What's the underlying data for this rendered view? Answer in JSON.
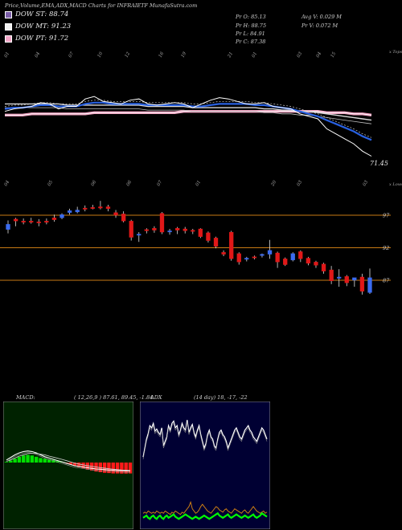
{
  "header": {
    "title": "Price,Volume,EMA,ADX,MACD Charts for INFRAIETF MunafaSutra.com",
    "dow_st": "DOW ST: 88.74",
    "dow_mt": "DOW MT: 91.23",
    "dow_pt": "DOW PT: 91.72",
    "pr_o": "Pr   O: 85.13",
    "pr_h": "Pr   H: 88.75",
    "pr_l": "Pr   L: 84.91",
    "pr_c": "Pr   C: 87.38",
    "avg_v": "Avg V: 0.029 M",
    "pr_v": "Pr   V: 0.072  M"
  },
  "colors": {
    "dow_st_swatch": "#7b5ea7",
    "dow_mt_swatch": "#f0f0f0",
    "dow_pt_swatch": "#f4a7c8",
    "up_candle": "#3b6bf0",
    "down_candle": "#e01818",
    "ema_short": "#2860e0",
    "ema_long": "#f0a0c0",
    "level_line": "#c87a14",
    "macd_bg": "#002200",
    "adx_bg": "#000033"
  },
  "chart_data": [
    {
      "type": "line",
      "name": "price-ema-overlay",
      "labels": {
        "top": "x Tops",
        "bottom": "x Lows",
        "last_value": "71.45"
      },
      "top_tick_labels": [
        "01",
        "04",
        "07",
        "10",
        "12",
        "16",
        "19",
        "21",
        "01",
        "03",
        "04",
        "15"
      ],
      "bottom_tick_labels": [
        "04",
        "05",
        "06",
        "06",
        "07",
        "01",
        "20",
        "03"
      ],
      "series": [
        {
          "name": "",
          "values": [
            66,
            68,
            69,
            70,
            73,
            72,
            68,
            70,
            70,
            76,
            78,
            74,
            73,
            72,
            75,
            76,
            72,
            71,
            72,
            73,
            72,
            69,
            72,
            75,
            77,
            76,
            74,
            72,
            72,
            73,
            70,
            69,
            68,
            64,
            62,
            60,
            52,
            48,
            44,
            40,
            34,
            30
          ]
        },
        {
          "name": "",
          "values": [
            68,
            69,
            69,
            70,
            71,
            71,
            70,
            70,
            70,
            72,
            73,
            73,
            72,
            72,
            72,
            72,
            71,
            71,
            71,
            71,
            71,
            70,
            70,
            71,
            72,
            72,
            72,
            72,
            71,
            71,
            70,
            69,
            68,
            66,
            64,
            62,
            59,
            56,
            53,
            50,
            46,
            43
          ]
        },
        {
          "name": "",
          "values": [
            72,
            72,
            72,
            72,
            72,
            72,
            72,
            71,
            71,
            71,
            71,
            71,
            71,
            71,
            71,
            71,
            70,
            70,
            70,
            70,
            70,
            69,
            69,
            69,
            69,
            69,
            69,
            69,
            69,
            68,
            68,
            67,
            67,
            66,
            66,
            65,
            64,
            63,
            62,
            61,
            60,
            59
          ]
        },
        {
          "name": "",
          "values": [
            63,
            63,
            63,
            64,
            64,
            64,
            64,
            64,
            64,
            64,
            65,
            65,
            65,
            65,
            65,
            65,
            65,
            65,
            65,
            65,
            66,
            66,
            66,
            66,
            66,
            66,
            66,
            66,
            66,
            66,
            66,
            66,
            66,
            66,
            66,
            66,
            65,
            65,
            65,
            64,
            64,
            63
          ]
        }
      ]
    },
    {
      "type": "candlestick",
      "name": "price-candles",
      "level_labels": [
        "97",
        "92",
        "87"
      ],
      "level_values": [
        97,
        92,
        87
      ],
      "candles": [
        {
          "o": 94.8,
          "h": 96.2,
          "l": 94.2,
          "c": 95.6
        },
        {
          "o": 96.4,
          "h": 96.6,
          "l": 95.3,
          "c": 96.1
        },
        {
          "o": 96.1,
          "h": 96.5,
          "l": 95.6,
          "c": 96.0
        },
        {
          "o": 96.1,
          "h": 96.6,
          "l": 95.7,
          "c": 95.9
        },
        {
          "o": 96.0,
          "h": 96.4,
          "l": 95.3,
          "c": 95.9
        },
        {
          "o": 96.1,
          "h": 96.5,
          "l": 95.6,
          "c": 95.9
        },
        {
          "o": 96.6,
          "h": 97.1,
          "l": 96.0,
          "c": 96.3
        },
        {
          "o": 96.6,
          "h": 97.3,
          "l": 96.4,
          "c": 97.1
        },
        {
          "o": 97.4,
          "h": 98.0,
          "l": 97.1,
          "c": 97.7
        },
        {
          "o": 97.5,
          "h": 98.3,
          "l": 97.3,
          "c": 97.8
        },
        {
          "o": 98.1,
          "h": 98.5,
          "l": 97.6,
          "c": 98.0
        },
        {
          "o": 98.2,
          "h": 98.6,
          "l": 97.9,
          "c": 98.1
        },
        {
          "o": 98.3,
          "h": 99.2,
          "l": 97.9,
          "c": 98.1
        },
        {
          "o": 98.3,
          "h": 98.6,
          "l": 97.6,
          "c": 98.0
        },
        {
          "o": 97.4,
          "h": 97.8,
          "l": 96.6,
          "c": 97.0
        },
        {
          "o": 97.2,
          "h": 97.6,
          "l": 95.9,
          "c": 96.1
        },
        {
          "o": 96.1,
          "h": 96.3,
          "l": 93.1,
          "c": 93.6
        },
        {
          "o": 94.0,
          "h": 94.4,
          "l": 92.9,
          "c": 94.1
        },
        {
          "o": 94.8,
          "h": 95.0,
          "l": 94.2,
          "c": 94.6
        },
        {
          "o": 95.0,
          "h": 95.3,
          "l": 94.3,
          "c": 94.7
        },
        {
          "o": 97.3,
          "h": 97.5,
          "l": 94.1,
          "c": 94.4
        },
        {
          "o": 94.6,
          "h": 94.9,
          "l": 94.0,
          "c": 94.6
        },
        {
          "o": 95.0,
          "h": 95.2,
          "l": 94.1,
          "c": 94.7
        },
        {
          "o": 94.9,
          "h": 95.2,
          "l": 94.2,
          "c": 94.6
        },
        {
          "o": 94.7,
          "h": 94.9,
          "l": 94.1,
          "c": 94.5
        },
        {
          "o": 94.9,
          "h": 95.0,
          "l": 93.5,
          "c": 93.7
        },
        {
          "o": 94.3,
          "h": 94.5,
          "l": 92.8,
          "c": 93.1
        },
        {
          "o": 93.5,
          "h": 93.7,
          "l": 91.9,
          "c": 92.2
        },
        {
          "o": 91.3,
          "h": 91.6,
          "l": 90.7,
          "c": 91.0
        },
        {
          "o": 94.4,
          "h": 94.6,
          "l": 90.0,
          "c": 90.3
        },
        {
          "o": 91.1,
          "h": 91.3,
          "l": 89.4,
          "c": 89.8
        },
        {
          "o": 90.3,
          "h": 90.6,
          "l": 89.9,
          "c": 90.4
        },
        {
          "o": 90.6,
          "h": 90.8,
          "l": 90.2,
          "c": 90.5
        },
        {
          "o": 90.8,
          "h": 91.1,
          "l": 90.5,
          "c": 91.0
        },
        {
          "o": 91.0,
          "h": 93.2,
          "l": 90.3,
          "c": 91.6
        },
        {
          "o": 91.2,
          "h": 91.4,
          "l": 88.9,
          "c": 89.8
        },
        {
          "o": 90.3,
          "h": 90.5,
          "l": 89.2,
          "c": 89.4
        },
        {
          "o": 90.1,
          "h": 91.3,
          "l": 89.9,
          "c": 91.1
        },
        {
          "o": 91.4,
          "h": 91.6,
          "l": 89.8,
          "c": 90.3
        },
        {
          "o": 90.4,
          "h": 90.6,
          "l": 89.3,
          "c": 89.6
        },
        {
          "o": 89.8,
          "h": 90.0,
          "l": 88.9,
          "c": 89.3
        },
        {
          "o": 89.5,
          "h": 89.7,
          "l": 88.0,
          "c": 88.4
        },
        {
          "o": 88.6,
          "h": 89.2,
          "l": 86.4,
          "c": 86.9
        },
        {
          "o": 87.3,
          "h": 88.7,
          "l": 86.0,
          "c": 87.5
        },
        {
          "o": 87.6,
          "h": 87.8,
          "l": 86.1,
          "c": 86.6
        },
        {
          "o": 87.0,
          "h": 87.3,
          "l": 86.0,
          "c": 87.4
        },
        {
          "o": 87.5,
          "h": 88.0,
          "l": 84.8,
          "c": 85.3
        },
        {
          "o": 85.1,
          "h": 88.8,
          "l": 84.9,
          "c": 87.4
        }
      ]
    },
    {
      "type": "bar",
      "name": "macd",
      "label": "MACD:",
      "params": "( 12,26,9 ) 87.61, 89.45, -1.84",
      "histogram": [
        0.05,
        0.15,
        0.3,
        0.45,
        0.55,
        0.6,
        0.55,
        0.45,
        0.35,
        0.3,
        0.25,
        0.2,
        0.12,
        0.05,
        -0.05,
        -0.15,
        -0.25,
        -0.35,
        -0.45,
        -0.55,
        -0.62,
        -0.7,
        -0.75,
        -0.8,
        -0.82,
        -0.85,
        -0.85,
        -0.86,
        -0.86,
        -0.85
      ],
      "macd_line": [
        0.2,
        0.4,
        0.6,
        0.75,
        0.85,
        0.9,
        0.85,
        0.75,
        0.6,
        0.45,
        0.35,
        0.25,
        0.15,
        0.05,
        -0.05,
        -0.15,
        -0.25,
        -0.3,
        -0.35,
        -0.4,
        -0.45,
        -0.5,
        -0.52,
        -0.55,
        -0.58,
        -0.6,
        -0.62,
        -0.63,
        -0.65,
        -0.66
      ],
      "signal_line": [
        0.1,
        0.2,
        0.35,
        0.5,
        0.6,
        0.7,
        0.72,
        0.7,
        0.65,
        0.6,
        0.5,
        0.42,
        0.33,
        0.25,
        0.15,
        0.05,
        -0.05,
        -0.12,
        -0.18,
        -0.25,
        -0.3,
        -0.35,
        -0.4,
        -0.44,
        -0.48,
        -0.52,
        -0.55,
        -0.58,
        -0.6,
        -0.62
      ]
    },
    {
      "type": "line",
      "name": "adx",
      "label": "ADX",
      "params": "(14 day) 18, -17, -22",
      "series": [
        {
          "name": "",
          "values": [
            62,
            70,
            78,
            83,
            90,
            88,
            92,
            85,
            87,
            84,
            82,
            88,
            72,
            76,
            80,
            90,
            86,
            92,
            94,
            88,
            90,
            82,
            86,
            92,
            88,
            86,
            95,
            84,
            88,
            91,
            84,
            80,
            86,
            90,
            82,
            76,
            70,
            74,
            82,
            86,
            80,
            78,
            72,
            70,
            78,
            84,
            86,
            82,
            80,
            76,
            70,
            74,
            78,
            82,
            86,
            88,
            84,
            80,
            78,
            82,
            86,
            88,
            90,
            86,
            84,
            80,
            78,
            76,
            80,
            84,
            88,
            86,
            82,
            78
          ]
        },
        {
          "name": "",
          "values": [
            12,
            13,
            12,
            14,
            13,
            12,
            13,
            12,
            14,
            13,
            12,
            13,
            12,
            14,
            13,
            12,
            11,
            13,
            12,
            14,
            13,
            12,
            11,
            13,
            12,
            14,
            16,
            18,
            22,
            16,
            14,
            12,
            13,
            15,
            18,
            20,
            18,
            16,
            14,
            13,
            12,
            14,
            16,
            18,
            17,
            15,
            14,
            13,
            15,
            16,
            14,
            13,
            12,
            14,
            16,
            15,
            14,
            13,
            12,
            14,
            15,
            13,
            12,
            14,
            16,
            18,
            16,
            14,
            13,
            12,
            13,
            14,
            12,
            13
          ]
        },
        {
          "name": "",
          "values": [
            8,
            9,
            10,
            8,
            7,
            9,
            10,
            8,
            7,
            9,
            10,
            8,
            7,
            9,
            10,
            8,
            9,
            10,
            11,
            9,
            8,
            7,
            8,
            9,
            10,
            11,
            10,
            9,
            8,
            7,
            8,
            9,
            8,
            7,
            8,
            9,
            10,
            9,
            8,
            7,
            8,
            9,
            10,
            11,
            12,
            10,
            9,
            8,
            9,
            10,
            11,
            9,
            8,
            9,
            10,
            11,
            10,
            9,
            8,
            9,
            10,
            9,
            8,
            9,
            10,
            11,
            9,
            8,
            9,
            10,
            12,
            11,
            10,
            9
          ]
        }
      ]
    }
  ]
}
